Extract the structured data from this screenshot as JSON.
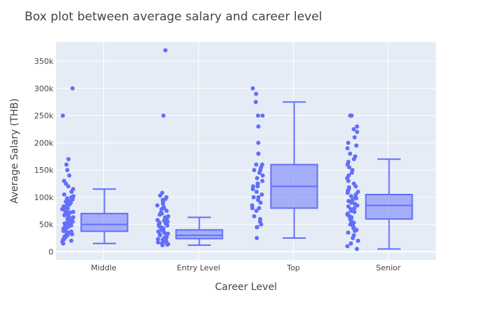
{
  "chart_data": {
    "type": "box",
    "title": "Box plot between average salary and career level",
    "xlabel": "Career Level",
    "ylabel": "Average Salary (THB)",
    "ylim": [
      -15000,
      385000
    ],
    "yticks": [
      0,
      50000,
      100000,
      150000,
      200000,
      250000,
      300000,
      350000
    ],
    "ytick_labels": [
      "0",
      "50k",
      "100k",
      "150k",
      "200k",
      "250k",
      "300k",
      "350k"
    ],
    "grid": true,
    "plot_background": "#e5ecf6",
    "series_color": "#636efa",
    "categories": [
      "Middle",
      "Entry Level",
      "Top",
      "Senior"
    ],
    "boxes": [
      {
        "name": "Middle",
        "lowerfence": 15000,
        "q1": 37500,
        "median": 50000,
        "q3": 70000,
        "upperfence": 115000,
        "points": [
          300000,
          250000,
          170000,
          160000,
          150000,
          140000,
          130000,
          125000,
          120000,
          115000,
          110000,
          105000,
          102000,
          100000,
          98000,
          96000,
          95000,
          93000,
          92000,
          90000,
          88000,
          87000,
          85000,
          83000,
          82000,
          80000,
          78000,
          77000,
          75000,
          73000,
          72000,
          70000,
          68000,
          67000,
          65000,
          63000,
          62000,
          60000,
          58000,
          57000,
          55000,
          53000,
          52000,
          50000,
          48000,
          47000,
          45000,
          43000,
          42000,
          40000,
          38000,
          37000,
          35000,
          33000,
          32000,
          30000,
          28000,
          27000,
          25000,
          23000,
          22000,
          20000,
          18000,
          15000
        ]
      },
      {
        "name": "Entry Level",
        "lowerfence": 12000,
        "q1": 24000,
        "median": 30000,
        "q3": 40000,
        "upperfence": 63000,
        "points": [
          370000,
          250000,
          108000,
          103000,
          100000,
          97000,
          95000,
          92000,
          88000,
          85000,
          82000,
          80000,
          78000,
          75000,
          72000,
          70000,
          68000,
          65000,
          63000,
          62000,
          60000,
          58000,
          57000,
          55000,
          53000,
          52000,
          50000,
          48000,
          47000,
          45000,
          43000,
          42000,
          40000,
          38000,
          37000,
          35000,
          33000,
          32000,
          30000,
          28000,
          27000,
          25000,
          23000,
          22000,
          20000,
          18000,
          17000,
          15000,
          14000,
          13000,
          12000
        ]
      },
      {
        "name": "Top",
        "lowerfence": 25000,
        "q1": 80000,
        "median": 120000,
        "q3": 160000,
        "upperfence": 275000,
        "points": [
          300000,
          290000,
          275000,
          250000,
          250000,
          230000,
          200000,
          180000,
          180000,
          160000,
          160000,
          155000,
          150000,
          150000,
          145000,
          140000,
          135000,
          130000,
          125000,
          125000,
          120000,
          120000,
          115000,
          110000,
          105000,
          100000,
          100000,
          95000,
          90000,
          85000,
          80000,
          80000,
          75000,
          65000,
          60000,
          55000,
          50000,
          45000,
          45000,
          25000
        ]
      },
      {
        "name": "Senior",
        "lowerfence": 5000,
        "q1": 60000,
        "median": 85000,
        "q3": 105000,
        "upperfence": 170000,
        "points": [
          250000,
          250000,
          230000,
          225000,
          220000,
          210000,
          200000,
          195000,
          190000,
          180000,
          175000,
          170000,
          165000,
          160000,
          155000,
          150000,
          145000,
          140000,
          135000,
          130000,
          125000,
          120000,
          118000,
          115000,
          112000,
          110000,
          108000,
          105000,
          102000,
          100000,
          98000,
          95000,
          93000,
          90000,
          88000,
          85000,
          83000,
          80000,
          78000,
          75000,
          73000,
          70000,
          68000,
          65000,
          63000,
          60000,
          58000,
          55000,
          53000,
          50000,
          48000,
          45000,
          43000,
          40000,
          38000,
          35000,
          30000,
          25000,
          20000,
          15000,
          10000,
          5000
        ]
      }
    ]
  }
}
